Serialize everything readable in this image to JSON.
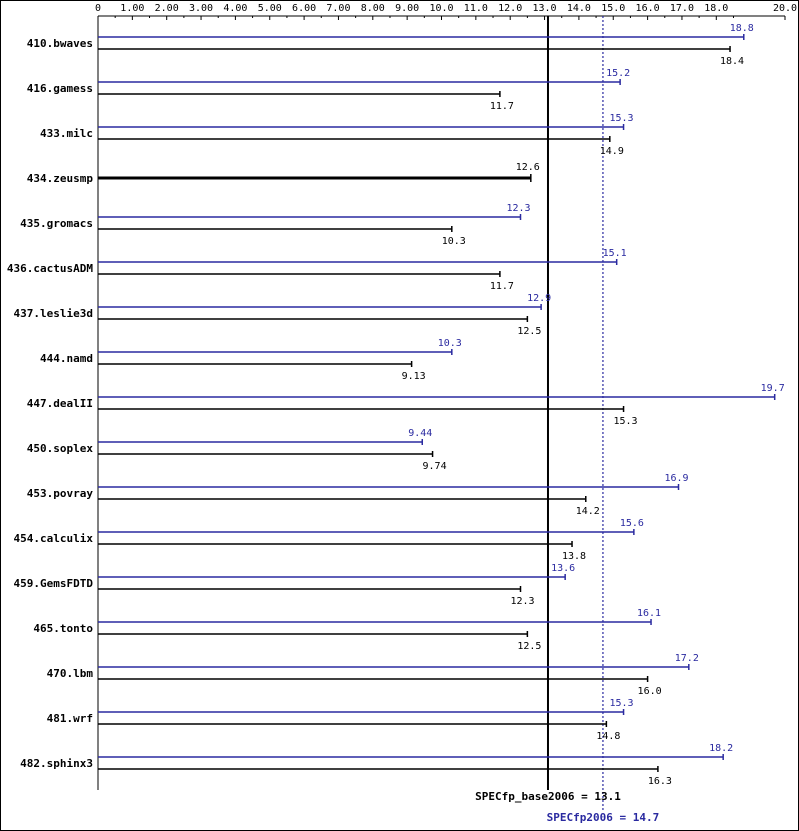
{
  "chart_data": {
    "type": "bar",
    "xlim": [
      0,
      20
    ],
    "ticks": [
      "0",
      "1.00",
      "2.00",
      "3.00",
      "4.00",
      "5.00",
      "6.00",
      "7.00",
      "8.00",
      "9.00",
      "10.0",
      "11.0",
      "12.0",
      "13.0",
      "14.0",
      "15.0",
      "16.0",
      "17.0",
      "18.0",
      "20.0"
    ],
    "tick_values": [
      0,
      1,
      2,
      3,
      4,
      5,
      6,
      7,
      8,
      9,
      10,
      11,
      12,
      13,
      14,
      15,
      16,
      17,
      18,
      20
    ],
    "colors": {
      "base": "#000000",
      "peak": "#2a2aa0"
    },
    "categories": [
      "410.bwaves",
      "416.gamess",
      "433.milc",
      "434.zeusmp",
      "435.gromacs",
      "436.cactusADM",
      "437.leslie3d",
      "444.namd",
      "447.dealII",
      "450.soplex",
      "453.povray",
      "454.calculix",
      "459.GemsFDTD",
      "465.tonto",
      "470.lbm",
      "481.wrf",
      "482.sphinx3"
    ],
    "series": [
      {
        "key": "peak",
        "values": [
          18.8,
          15.2,
          15.3,
          null,
          12.3,
          15.1,
          12.9,
          10.3,
          19.7,
          9.44,
          16.9,
          15.6,
          13.6,
          16.1,
          17.2,
          15.3,
          18.2
        ],
        "labels": [
          "18.8",
          "15.2",
          "15.3",
          "",
          "12.3",
          "15.1",
          "12.9",
          "10.3",
          "19.7",
          "9.44",
          "16.9",
          "15.6",
          "13.6",
          "16.1",
          "17.2",
          "15.3",
          "18.2"
        ]
      },
      {
        "key": "base",
        "values": [
          18.4,
          11.7,
          14.9,
          12.6,
          10.3,
          11.7,
          12.5,
          9.13,
          15.3,
          9.74,
          14.2,
          13.8,
          12.3,
          12.5,
          16.0,
          14.8,
          16.3
        ],
        "labels": [
          "18.4",
          "11.7",
          "14.9",
          "12.6",
          "10.3",
          "11.7",
          "12.5",
          "9.13",
          "15.3",
          "9.74",
          "14.2",
          "13.8",
          "12.3",
          "12.5",
          "16.0",
          "14.8",
          "16.3"
        ]
      }
    ],
    "reference_lines": {
      "base": {
        "label": "SPECfp_base2006 = 13.1",
        "value": 13.1
      },
      "peak": {
        "label": "SPECfp2006 = 14.7",
        "value": 14.7
      }
    }
  }
}
